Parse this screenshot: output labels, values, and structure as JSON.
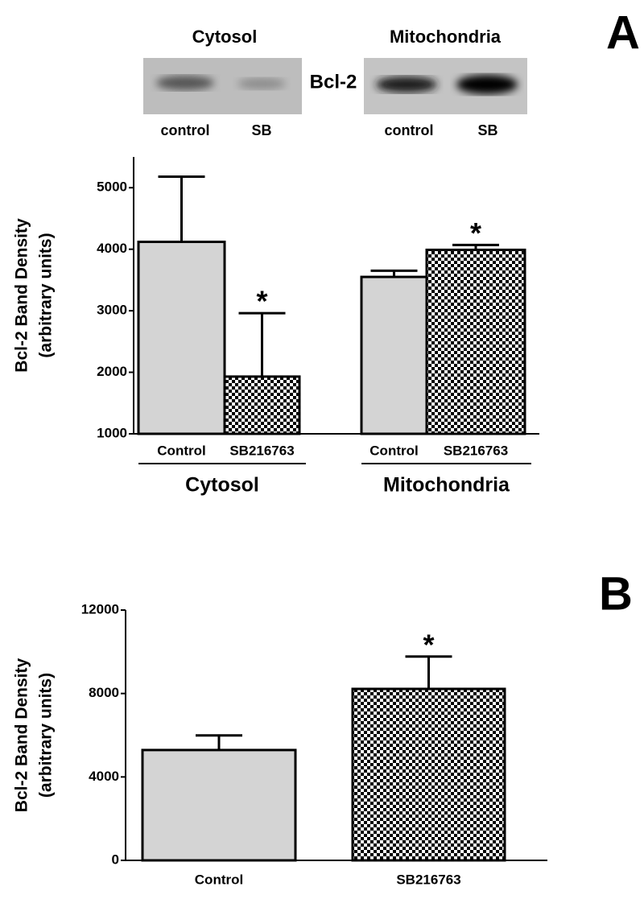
{
  "chart_data": [
    {
      "type": "bar",
      "panel_label": "A",
      "blot": {
        "label": "Bcl-2",
        "panels": [
          {
            "title": "Cytosol",
            "lanes": [
              "control",
              "SB"
            ]
          },
          {
            "title": "Mitochondria",
            "lanes": [
              "control",
              "SB"
            ]
          }
        ]
      },
      "ylabel": [
        "Bcl-2 Band Density",
        "(arbitrary units)"
      ],
      "categories": [
        "Control",
        "SB216763",
        "Control",
        "SB216763"
      ],
      "values": [
        4120,
        1930,
        3550,
        3990
      ],
      "errors": [
        1060,
        1030,
        100,
        80
      ],
      "fills": [
        "solid",
        "checker",
        "solid",
        "checker"
      ],
      "color": "#d4d4d4",
      "significance": [
        null,
        "*",
        null,
        "*"
      ],
      "groups": [
        {
          "name": "Cytosol",
          "members": [
            0,
            1
          ]
        },
        {
          "name": "Mitochondria",
          "members": [
            2,
            3
          ]
        }
      ],
      "ylim": [
        1000,
        5500
      ],
      "yticks": [
        1000,
        2000,
        3000,
        4000,
        5000
      ]
    },
    {
      "type": "bar",
      "panel_label": "B",
      "ylabel": [
        "Bcl-2 Band Density",
        "(arbitrary units)"
      ],
      "categories": [
        "Control",
        "SB216763"
      ],
      "values": [
        5290,
        8220
      ],
      "errors": [
        700,
        1550
      ],
      "fills": [
        "solid",
        "checker"
      ],
      "color": "#d4d4d4",
      "significance": [
        null,
        "*"
      ],
      "ylim": [
        0,
        12000
      ],
      "yticks": [
        0,
        4000,
        8000,
        12000
      ]
    }
  ]
}
